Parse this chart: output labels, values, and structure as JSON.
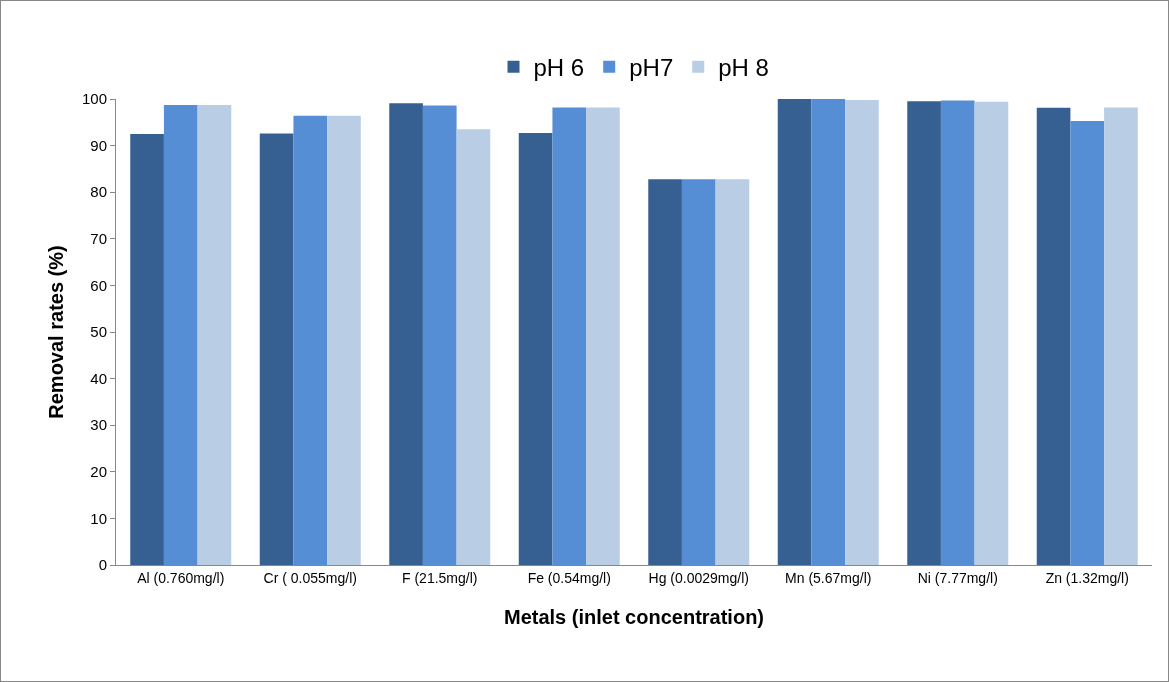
{
  "chart_data": {
    "type": "bar",
    "xlabel": "Metals (inlet concentration)",
    "ylabel": "Removal rates (%)",
    "categories": [
      "Al (0.760mg/l)",
      "Cr ( 0.055mg/l)",
      "F (21.5mg/l)",
      "Fe (0.54mg/l)",
      "Hg (0.0029mg/l)",
      "Mn (5.67mg/l)",
      "Ni (7.77mg/l)",
      "Zn (1.32mg/l)"
    ],
    "series": [
      {
        "name": "pH 6",
        "color": "#366092",
        "values": [
          92.5,
          92.6,
          99.1,
          92.7,
          82.8,
          100,
          99.5,
          98.1
        ]
      },
      {
        "name": "pH7",
        "color": "#558ed5",
        "values": [
          98.7,
          96.4,
          98.6,
          98.2,
          82.8,
          100,
          99.7,
          95.3
        ]
      },
      {
        "name": "pH 8",
        "color": "#b9cde5",
        "values": [
          98.7,
          96.4,
          93.5,
          98.2,
          82.8,
          99.8,
          99.4,
          98.2
        ]
      }
    ],
    "ylim": [
      0,
      100
    ],
    "yticks": [
      0,
      10,
      20,
      30,
      40,
      50,
      60,
      70,
      80,
      90,
      100
    ],
    "grid": false,
    "legend": "top"
  }
}
